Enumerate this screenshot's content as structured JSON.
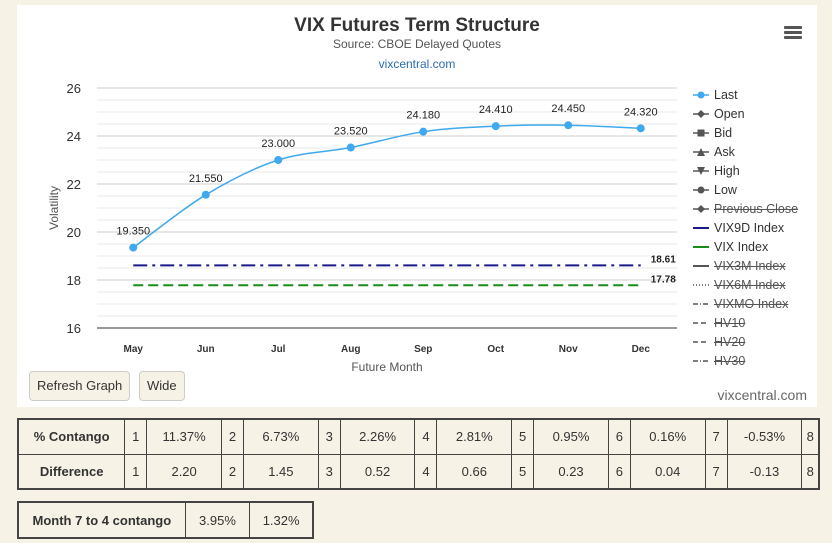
{
  "chart_data": {
    "type": "line",
    "title": "VIX Futures Term Structure",
    "subtitle": "Source: CBOE Delayed Quotes",
    "source_link": "vixcentral.com",
    "xlabel": "Future Month",
    "ylabel": "Volatility",
    "ylim": [
      16,
      26
    ],
    "yticks": [
      "16",
      "18",
      "20",
      "22",
      "24",
      "26"
    ],
    "categories": [
      "May",
      "Jun",
      "Jul",
      "Aug",
      "Sep",
      "Oct",
      "Nov",
      "Dec"
    ],
    "series": [
      {
        "name": "Last",
        "values": [
          19.35,
          21.55,
          23.0,
          23.52,
          24.18,
          24.41,
          24.45,
          24.32
        ],
        "labels": [
          "19.350",
          "21.550",
          "23.000",
          "23.520",
          "24.180",
          "24.410",
          "24.450",
          "24.320"
        ],
        "color": "#3ea9ee"
      },
      {
        "name": "VIX9D Index",
        "value": 18.61,
        "label": "18.61",
        "color": "#1a1a8c"
      },
      {
        "name": "VIX Index",
        "value": 17.78,
        "label": "17.78",
        "color": "#1a8c1a"
      }
    ],
    "legend_position": "right",
    "grid": true,
    "credit": "vixcentral.com"
  },
  "legend": [
    {
      "label": "Last",
      "symbol": "circle-line",
      "color": "#3ea9ee",
      "visible": true
    },
    {
      "label": "Open",
      "symbol": "diamond-line",
      "color": "#555",
      "visible": true
    },
    {
      "label": "Bid",
      "symbol": "square-line",
      "color": "#555",
      "visible": true
    },
    {
      "label": "Ask",
      "symbol": "triangle-line",
      "color": "#555",
      "visible": true
    },
    {
      "label": "High",
      "symbol": "triangle-down-line",
      "color": "#555",
      "visible": true
    },
    {
      "label": "Low",
      "symbol": "circle-line",
      "color": "#555",
      "visible": true
    },
    {
      "label": "Previous Close",
      "symbol": "diamond-line",
      "color": "#555",
      "visible": false
    },
    {
      "label": "VIX9D Index",
      "symbol": "solid",
      "color": "#1a1a8c",
      "visible": true
    },
    {
      "label": "VIX Index",
      "symbol": "solid",
      "color": "#1a8c1a",
      "visible": true
    },
    {
      "label": "VIX3M Index",
      "symbol": "solid",
      "color": "#555",
      "visible": false
    },
    {
      "label": "VIX6M Index",
      "symbol": "dotted",
      "color": "#555",
      "visible": false
    },
    {
      "label": "VIXMO Index",
      "symbol": "dashdot",
      "color": "#555",
      "visible": false
    },
    {
      "label": "HV10",
      "symbol": "dash",
      "color": "#555",
      "visible": false
    },
    {
      "label": "HV20",
      "symbol": "dash",
      "color": "#555",
      "visible": false
    },
    {
      "label": "HV30",
      "symbol": "dashdot",
      "color": "#555",
      "visible": false
    }
  ],
  "buttons": {
    "refresh": "Refresh Graph",
    "wide": "Wide"
  },
  "contango_table": {
    "rows": [
      {
        "header": "% Contango",
        "cells": [
          "1",
          "11.37%",
          "2",
          "6.73%",
          "3",
          "2.26%",
          "4",
          "2.81%",
          "5",
          "0.95%",
          "6",
          "0.16%",
          "7",
          "-0.53%",
          "8"
        ]
      },
      {
        "header": "Difference",
        "cells": [
          "1",
          "2.20",
          "2",
          "1.45",
          "3",
          "0.52",
          "4",
          "0.66",
          "5",
          "0.23",
          "6",
          "0.04",
          "7",
          "-0.13",
          "8"
        ]
      }
    ]
  },
  "month_contango": {
    "label": "Month 7 to 4 contango",
    "values": [
      "3.95%",
      "1.32%"
    ]
  }
}
